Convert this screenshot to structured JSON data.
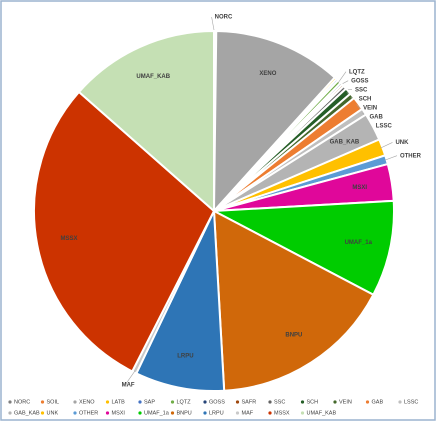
{
  "chart_data": {
    "type": "pie",
    "categories": [
      "NORC",
      "SOIL",
      "XENO",
      "LATB",
      "SAP",
      "LQTZ",
      "GOSS",
      "SAFR",
      "SSC",
      "SCH",
      "VEIN",
      "GAB",
      "LSSC",
      "GAB_KAB",
      "UNK",
      "OTHER",
      "MSXI",
      "UMAF_1a",
      "BNPU",
      "LRPU",
      "MAF",
      "MSSX",
      "UMAF_KAB"
    ],
    "values": [
      0.1,
      0.1,
      11.5,
      0.2,
      0.2,
      0.3,
      0.2,
      0.2,
      0.3,
      0.6,
      0.5,
      1.2,
      0.6,
      2.5,
      1.5,
      0.8,
      3.3,
      8.6,
      16.4,
      8,
      0.4,
      29,
      13.5
    ],
    "colors": [
      "#7f7f7f",
      "#ed7d31",
      "#a5a5a5",
      "#ffc000",
      "#4472c4",
      "#70ad47",
      "#264478",
      "#9e480e",
      "#636363",
      "#255e27",
      "#43682b",
      "#ed7d31",
      "#bfbfbf",
      "#b4b4b4",
      "#ffc000",
      "#5b9bd5",
      "#e0079a",
      "#00cc00",
      "#d0680a",
      "#2e75b6",
      "#c9c9c9",
      "#cc3300",
      "#c5e0b4"
    ],
    "slice_labels": [
      true,
      false,
      true,
      false,
      false,
      true,
      true,
      false,
      true,
      true,
      true,
      true,
      true,
      true,
      true,
      true,
      true,
      true,
      true,
      true,
      true,
      true,
      true
    ],
    "legend": "bottom"
  }
}
